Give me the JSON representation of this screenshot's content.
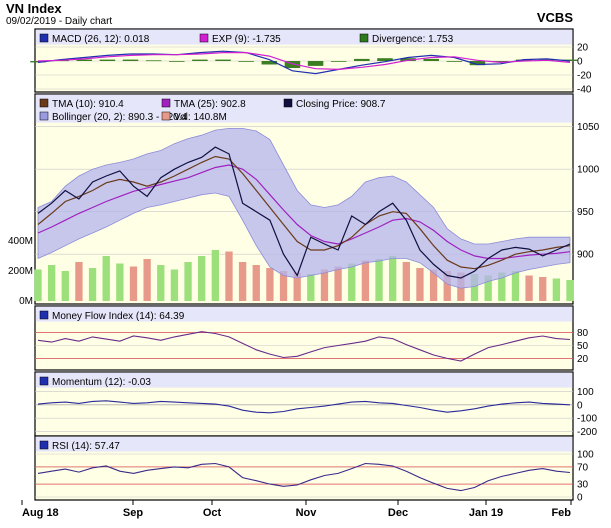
{
  "header": {
    "title": "VN Index",
    "date": "09/02/2019 - Daily chart",
    "brand": "VCBS"
  },
  "x_axis": [
    "Aug 18",
    "Sep",
    "Oct",
    "Nov",
    "Dec",
    "Jan 19",
    "Feb"
  ],
  "chart_data": [
    {
      "panel": "macd",
      "type": "line",
      "legend": [
        {
          "label": "MACD (26, 12): 0.018",
          "color": "#1f2fb0"
        },
        {
          "label": "EXP (9): -1.735",
          "color": "#d21fd2"
        },
        {
          "label": "Divergence: 1.753",
          "color": "#2f7a1f"
        }
      ],
      "ylim": [
        -40,
        20
      ],
      "ticks": [
        20,
        0,
        -20,
        -40
      ],
      "series": [
        {
          "color": "#1f2fb0",
          "values": [
            -2,
            2,
            5,
            8,
            10,
            10,
            9,
            12,
            14,
            12,
            2,
            -14,
            -18,
            -12,
            -6,
            -1,
            5,
            8,
            5,
            -5,
            -4,
            2,
            3,
            0
          ]
        },
        {
          "color": "#d21fd2",
          "values": [
            0,
            1,
            3,
            6,
            8,
            9,
            9,
            10,
            12,
            12,
            7,
            -4,
            -11,
            -12,
            -9,
            -5,
            1,
            5,
            6,
            1,
            -2,
            0,
            1,
            -2
          ]
        }
      ],
      "bars": [
        -2,
        1,
        2,
        2,
        2,
        1,
        0,
        2,
        2,
        0,
        -5,
        -10,
        -7,
        0,
        3,
        4,
        4,
        3,
        -1,
        -6,
        -2,
        2,
        2,
        2
      ]
    },
    {
      "panel": "price",
      "type": "line",
      "legend": [
        {
          "label": "TMA (10): 910.4",
          "color": "#6b3a1a"
        },
        {
          "label": "TMA (25): 902.8",
          "color": "#a020c0"
        },
        {
          "label": "Closing Price: 908.7",
          "color": "#101040"
        },
        {
          "label": "Bollinger (20, 2): 890.3 - 920.4",
          "color": "#9a9ae0"
        },
        {
          "label": "Vol: 140.8M",
          "color": "#e89a8a"
        }
      ],
      "ylim": [
        845,
        1052
      ],
      "ticks": [
        1050,
        1000,
        950,
        900
      ],
      "vol_ticks": [
        "400M",
        "200M",
        "0M"
      ],
      "vol_max": 600,
      "closing": [
        948,
        960,
        975,
        965,
        985,
        992,
        998,
        980,
        968,
        990,
        1000,
        1008,
        1014,
        1026,
        1018,
        960,
        950,
        940,
        900,
        875,
        920,
        912,
        905,
        945,
        935,
        950,
        960,
        940,
        905,
        888,
        875,
        872,
        880,
        895,
        905,
        908,
        906,
        898,
        905,
        912
      ],
      "tma10": [
        935,
        948,
        962,
        968,
        975,
        984,
        988,
        985,
        980,
        985,
        992,
        1000,
        1008,
        1015,
        1012,
        995,
        975,
        955,
        935,
        915,
        905,
        905,
        910,
        920,
        935,
        945,
        950,
        948,
        930,
        910,
        893,
        885,
        883,
        887,
        893,
        900,
        903,
        905,
        908,
        910
      ],
      "tma25": [
        925,
        932,
        940,
        948,
        955,
        962,
        968,
        974,
        978,
        982,
        986,
        990,
        996,
        1002,
        1005,
        1000,
        988,
        970,
        952,
        935,
        922,
        915,
        912,
        918,
        925,
        932,
        940,
        942,
        938,
        928,
        915,
        905,
        898,
        895,
        895,
        897,
        899,
        900,
        901,
        903
      ],
      "boll_upper": [
        955,
        962,
        980,
        992,
        1000,
        1005,
        1008,
        1012,
        1018,
        1022,
        1030,
        1036,
        1040,
        1046,
        1048,
        1048,
        1045,
        1035,
        1005,
        975,
        958,
        955,
        958,
        968,
        985,
        990,
        992,
        985,
        970,
        955,
        930,
        918,
        912,
        912,
        915,
        918,
        920,
        920,
        920,
        920
      ],
      "boll_lower": [
        895,
        902,
        910,
        918,
        925,
        932,
        940,
        948,
        955,
        958,
        962,
        966,
        970,
        972,
        968,
        940,
        910,
        885,
        875,
        872,
        875,
        878,
        882,
        885,
        890,
        892,
        895,
        895,
        890,
        878,
        865,
        860,
        862,
        868,
        872,
        878,
        882,
        885,
        888,
        890
      ],
      "volume": [
        210,
        240,
        200,
        260,
        220,
        300,
        250,
        230,
        280,
        240,
        210,
        260,
        300,
        340,
        330,
        260,
        240,
        220,
        200,
        190,
        180,
        210,
        230,
        250,
        270,
        280,
        300,
        260,
        220,
        210,
        200,
        190,
        180,
        170,
        190,
        200,
        170,
        160,
        150,
        140
      ]
    },
    {
      "panel": "mfi",
      "type": "line",
      "legend": [
        {
          "label": "Money Flow Index (14): 64.39",
          "color": "#1f2fb0"
        }
      ],
      "ylim": [
        0,
        100
      ],
      "ticks": [
        80,
        50,
        20
      ],
      "values": [
        62,
        58,
        66,
        60,
        70,
        65,
        60,
        72,
        68,
        62,
        70,
        76,
        82,
        78,
        70,
        55,
        40,
        30,
        22,
        25,
        35,
        45,
        50,
        55,
        60,
        70,
        66,
        52,
        40,
        28,
        20,
        14,
        30,
        45,
        52,
        60,
        68,
        72,
        66,
        64
      ]
    },
    {
      "panel": "momentum",
      "type": "line",
      "legend": [
        {
          "label": "Momentum (12): -0.03",
          "color": "#1f2fb0"
        }
      ],
      "ylim": [
        -210,
        110
      ],
      "ticks": [
        100,
        0,
        -100,
        -200
      ],
      "values": [
        5,
        15,
        20,
        10,
        25,
        30,
        20,
        10,
        15,
        25,
        20,
        15,
        10,
        5,
        -10,
        -40,
        -55,
        -60,
        -50,
        -30,
        -20,
        -10,
        5,
        20,
        25,
        15,
        10,
        -5,
        -20,
        -40,
        -55,
        -45,
        -30,
        -10,
        5,
        15,
        20,
        10,
        5,
        0
      ]
    },
    {
      "panel": "rsi",
      "type": "line",
      "legend": [
        {
          "label": "RSI (14): 57.47",
          "color": "#1f2fb0"
        }
      ],
      "ylim": [
        0,
        100
      ],
      "ticks": [
        100,
        70,
        30,
        0
      ],
      "values": [
        55,
        60,
        65,
        58,
        68,
        72,
        60,
        55,
        62,
        66,
        70,
        68,
        76,
        78,
        70,
        45,
        38,
        30,
        25,
        28,
        40,
        50,
        55,
        66,
        78,
        76,
        72,
        60,
        45,
        32,
        20,
        15,
        22,
        38,
        48,
        55,
        62,
        66,
        60,
        57
      ]
    }
  ]
}
